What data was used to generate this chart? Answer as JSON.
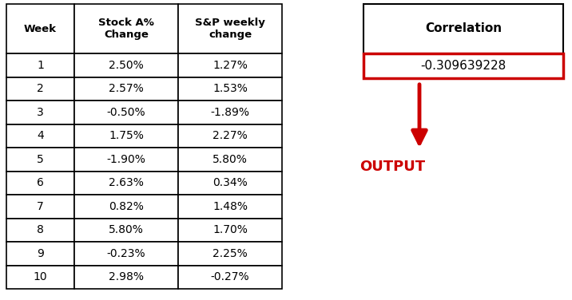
{
  "weeks": [
    "1",
    "2",
    "3",
    "4",
    "5",
    "6",
    "7",
    "8",
    "9",
    "10"
  ],
  "stock_a": [
    "2.50%",
    "2.57%",
    "-0.50%",
    "1.75%",
    "-1.90%",
    "2.63%",
    "0.82%",
    "5.80%",
    "-0.23%",
    "2.98%"
  ],
  "sp_weekly": [
    "1.27%",
    "1.53%",
    "-1.89%",
    "2.27%",
    "5.80%",
    "0.34%",
    "1.48%",
    "1.70%",
    "2.25%",
    "-0.27%"
  ],
  "col_headers": [
    "Week",
    "Stock A%\nChange",
    "S&P weekly\nchange"
  ],
  "correlation_header": "Correlation",
  "correlation_value": "-0.309639228",
  "output_label": "OUTPUT",
  "border_color": "#000000",
  "text_color": "#000000",
  "output_text_color": "#cc0000",
  "arrow_color": "#cc0000",
  "corr_box_border": "#cc0000",
  "bg_color": "#ffffff",
  "fig_width": 7.16,
  "fig_height": 3.76,
  "dpi": 100
}
